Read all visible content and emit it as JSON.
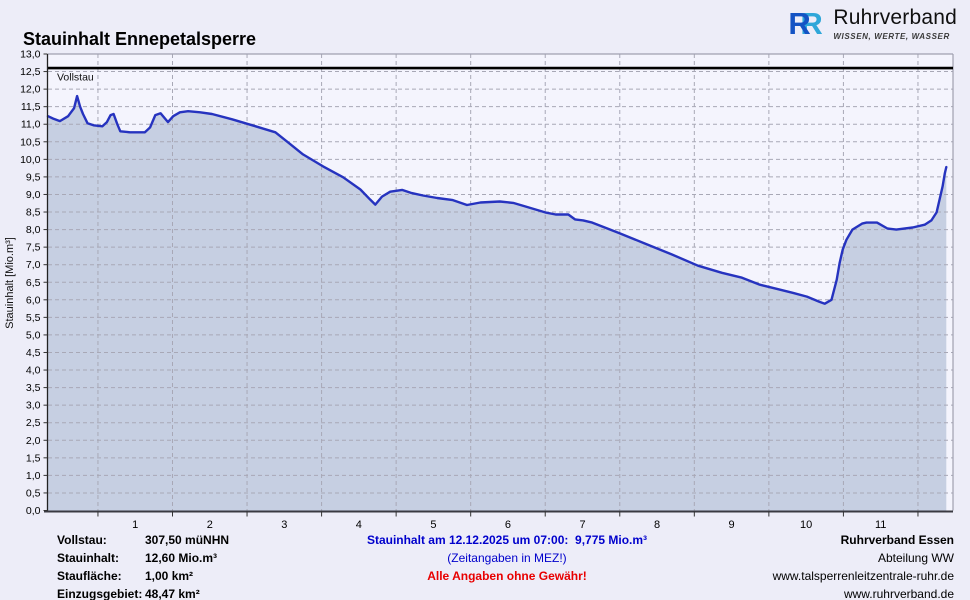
{
  "header": {
    "title": "Stauinhalt Ennepetalsperre",
    "logo": {
      "letter": "R",
      "name": "Ruhrverband",
      "tagline": "WISSEN, WERTE, WASSER"
    }
  },
  "colors": {
    "page_bg": "#ededf8",
    "plot_bg": "#f4f4fd",
    "area_fill": "#c6cfe2",
    "line": "#2633bf",
    "grid": "#a8a8b6",
    "border": "#a0a0b0",
    "axis": "#333333",
    "reference_line": "#000000",
    "info_blue": "#0000cc",
    "warn_red": "#e80000"
  },
  "chart_data": {
    "type": "area",
    "title": "Stauinhalt Ennepetalsperre",
    "xlabel": "",
    "ylabel": "Stauinhalt [Mio.m³]",
    "ylim": [
      0,
      13
    ],
    "xlim": [
      -0.17,
      11.97
    ],
    "grid": true,
    "yticks": [
      "0,0",
      "0,5",
      "1,0",
      "1,5",
      "2,0",
      "2,5",
      "3,0",
      "3,5",
      "4,0",
      "4,5",
      "5,0",
      "5,5",
      "6,0",
      "6,5",
      "7,0",
      "7,5",
      "8,0",
      "8,5",
      "9,0",
      "9,5",
      "10,0",
      "10,5",
      "11,0",
      "11,5",
      "12,0",
      "12,5",
      "13,0"
    ],
    "ytick_step": 0.5,
    "xticks": [
      1,
      2,
      3,
      4,
      5,
      6,
      7,
      8,
      9,
      10,
      11
    ],
    "x_grid_positions": [
      0.5,
      1.5,
      2.5,
      3.5,
      4.5,
      5.5,
      6.5,
      7.5,
      8.5,
      9.5,
      10.5,
      11.5
    ],
    "reference_line": {
      "label": "Vollstau",
      "value": 12.6
    },
    "series": [
      {
        "name": "Stauinhalt",
        "points": [
          [
            -0.17,
            11.23
          ],
          [
            -0.1,
            11.16
          ],
          [
            -0.01,
            11.09
          ],
          [
            0.1,
            11.23
          ],
          [
            0.18,
            11.46
          ],
          [
            0.22,
            11.8
          ],
          [
            0.26,
            11.5
          ],
          [
            0.3,
            11.29
          ],
          [
            0.36,
            11.03
          ],
          [
            0.44,
            10.97
          ],
          [
            0.56,
            10.94
          ],
          [
            0.62,
            11.06
          ],
          [
            0.67,
            11.26
          ],
          [
            0.71,
            11.29
          ],
          [
            0.76,
            11.0
          ],
          [
            0.8,
            10.8
          ],
          [
            0.93,
            10.77
          ],
          [
            1.13,
            10.77
          ],
          [
            1.2,
            10.91
          ],
          [
            1.27,
            11.26
          ],
          [
            1.34,
            11.31
          ],
          [
            1.44,
            11.06
          ],
          [
            1.51,
            11.23
          ],
          [
            1.6,
            11.34
          ],
          [
            1.71,
            11.37
          ],
          [
            1.87,
            11.34
          ],
          [
            2.03,
            11.29
          ],
          [
            2.3,
            11.14
          ],
          [
            2.57,
            10.97
          ],
          [
            2.88,
            10.77
          ],
          [
            3.08,
            10.43
          ],
          [
            3.25,
            10.14
          ],
          [
            3.52,
            9.8
          ],
          [
            3.79,
            9.49
          ],
          [
            4.02,
            9.14
          ],
          [
            4.15,
            8.86
          ],
          [
            4.22,
            8.71
          ],
          [
            4.31,
            8.94
          ],
          [
            4.42,
            9.08
          ],
          [
            4.58,
            9.13
          ],
          [
            4.71,
            9.04
          ],
          [
            4.86,
            8.97
          ],
          [
            5.05,
            8.9
          ],
          [
            5.26,
            8.84
          ],
          [
            5.45,
            8.7
          ],
          [
            5.63,
            8.77
          ],
          [
            5.89,
            8.8
          ],
          [
            6.07,
            8.76
          ],
          [
            6.23,
            8.66
          ],
          [
            6.5,
            8.49
          ],
          [
            6.64,
            8.43
          ],
          [
            6.81,
            8.43
          ],
          [
            6.9,
            8.29
          ],
          [
            7.01,
            8.26
          ],
          [
            7.13,
            8.2
          ],
          [
            7.48,
            7.91
          ],
          [
            7.84,
            7.6
          ],
          [
            8.2,
            7.29
          ],
          [
            8.55,
            6.97
          ],
          [
            8.87,
            6.77
          ],
          [
            9.14,
            6.63
          ],
          [
            9.38,
            6.43
          ],
          [
            9.61,
            6.31
          ],
          [
            9.82,
            6.2
          ],
          [
            10.01,
            6.09
          ],
          [
            10.18,
            5.94
          ],
          [
            10.25,
            5.89
          ],
          [
            10.34,
            6.0
          ],
          [
            10.41,
            6.57
          ],
          [
            10.45,
            7.06
          ],
          [
            10.49,
            7.43
          ],
          [
            10.54,
            7.71
          ],
          [
            10.62,
            8.0
          ],
          [
            10.75,
            8.17
          ],
          [
            10.81,
            8.2
          ],
          [
            10.95,
            8.2
          ],
          [
            11.09,
            8.03
          ],
          [
            11.21,
            8.0
          ],
          [
            11.43,
            8.06
          ],
          [
            11.59,
            8.14
          ],
          [
            11.68,
            8.26
          ],
          [
            11.75,
            8.49
          ],
          [
            11.79,
            8.86
          ],
          [
            11.83,
            9.23
          ],
          [
            11.86,
            9.6
          ],
          [
            11.88,
            9.78
          ]
        ]
      }
    ]
  },
  "footer": {
    "left": {
      "rows": [
        {
          "label": "Vollstau:",
          "value": "307,50 müNHN"
        },
        {
          "label": "Stauinhalt:",
          "value": "12,60 Mio.m³"
        },
        {
          "label": "Staufläche:",
          "value": "1,00 km²"
        },
        {
          "label": "Einzugsgebiet:",
          "value": "48,47 km²"
        }
      ]
    },
    "center": {
      "line1": "Stauinhalt am 12.12.2025 um 07:00:  9,775 Mio.m³",
      "line2": "(Zeitangaben in MEZ!)",
      "line3": "Alle Angaben ohne Gewähr!"
    },
    "right": {
      "lines": [
        "Ruhrverband Essen",
        "Abteilung WW",
        "www.talsperrenleitzentrale-ruhr.de",
        "www.ruhrverband.de"
      ]
    }
  }
}
